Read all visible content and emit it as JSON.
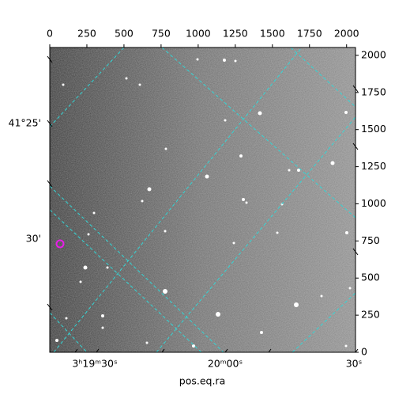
{
  "chart_data": {
    "type": "image",
    "xlabel": "pos.eq.ra",
    "xlim": [
      0,
      2060
    ],
    "xticks": [
      0,
      250,
      500,
      750,
      1000,
      1250,
      1500,
      1750,
      2000
    ],
    "ylim": [
      0,
      2053
    ],
    "yticks": [
      0,
      250,
      500,
      750,
      1000,
      1250,
      1500,
      1750,
      2000
    ],
    "ra_ticks": [
      "3ʰ19ᵐ30ˢ",
      "20ᵐ00ˢ",
      "30ˢ"
    ],
    "dec_ticks": [
      "41°25'",
      "30'"
    ]
  }
}
